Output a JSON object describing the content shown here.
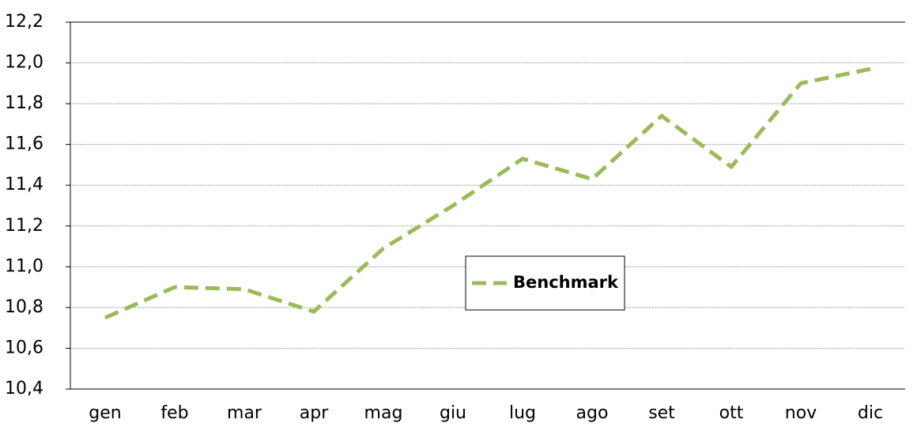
{
  "chart_data": {
    "type": "line",
    "categories": [
      "gen",
      "feb",
      "mar",
      "apr",
      "mag",
      "giu",
      "lug",
      "ago",
      "set",
      "ott",
      "nov",
      "dic"
    ],
    "series": [
      {
        "name": "Benchmark",
        "color": "#9bbb59",
        "values": [
          10.75,
          10.9,
          10.89,
          10.78,
          11.09,
          11.3,
          11.53,
          11.43,
          11.74,
          11.49,
          11.9,
          11.97
        ]
      }
    ],
    "ylim": [
      10.4,
      12.2
    ],
    "yticks": [
      {
        "value": 10.4,
        "label": "10,4"
      },
      {
        "value": 10.6,
        "label": "10,6"
      },
      {
        "value": 10.8,
        "label": "10,8"
      },
      {
        "value": 11.0,
        "label": "11,0"
      },
      {
        "value": 11.2,
        "label": "11,2"
      },
      {
        "value": 11.4,
        "label": "11,4"
      },
      {
        "value": 11.6,
        "label": "11,6"
      },
      {
        "value": 11.8,
        "label": "11,8"
      },
      {
        "value": 12.0,
        "label": "12,0"
      },
      {
        "value": 12.2,
        "label": "12,2"
      }
    ],
    "grid": true,
    "legend": "center"
  }
}
